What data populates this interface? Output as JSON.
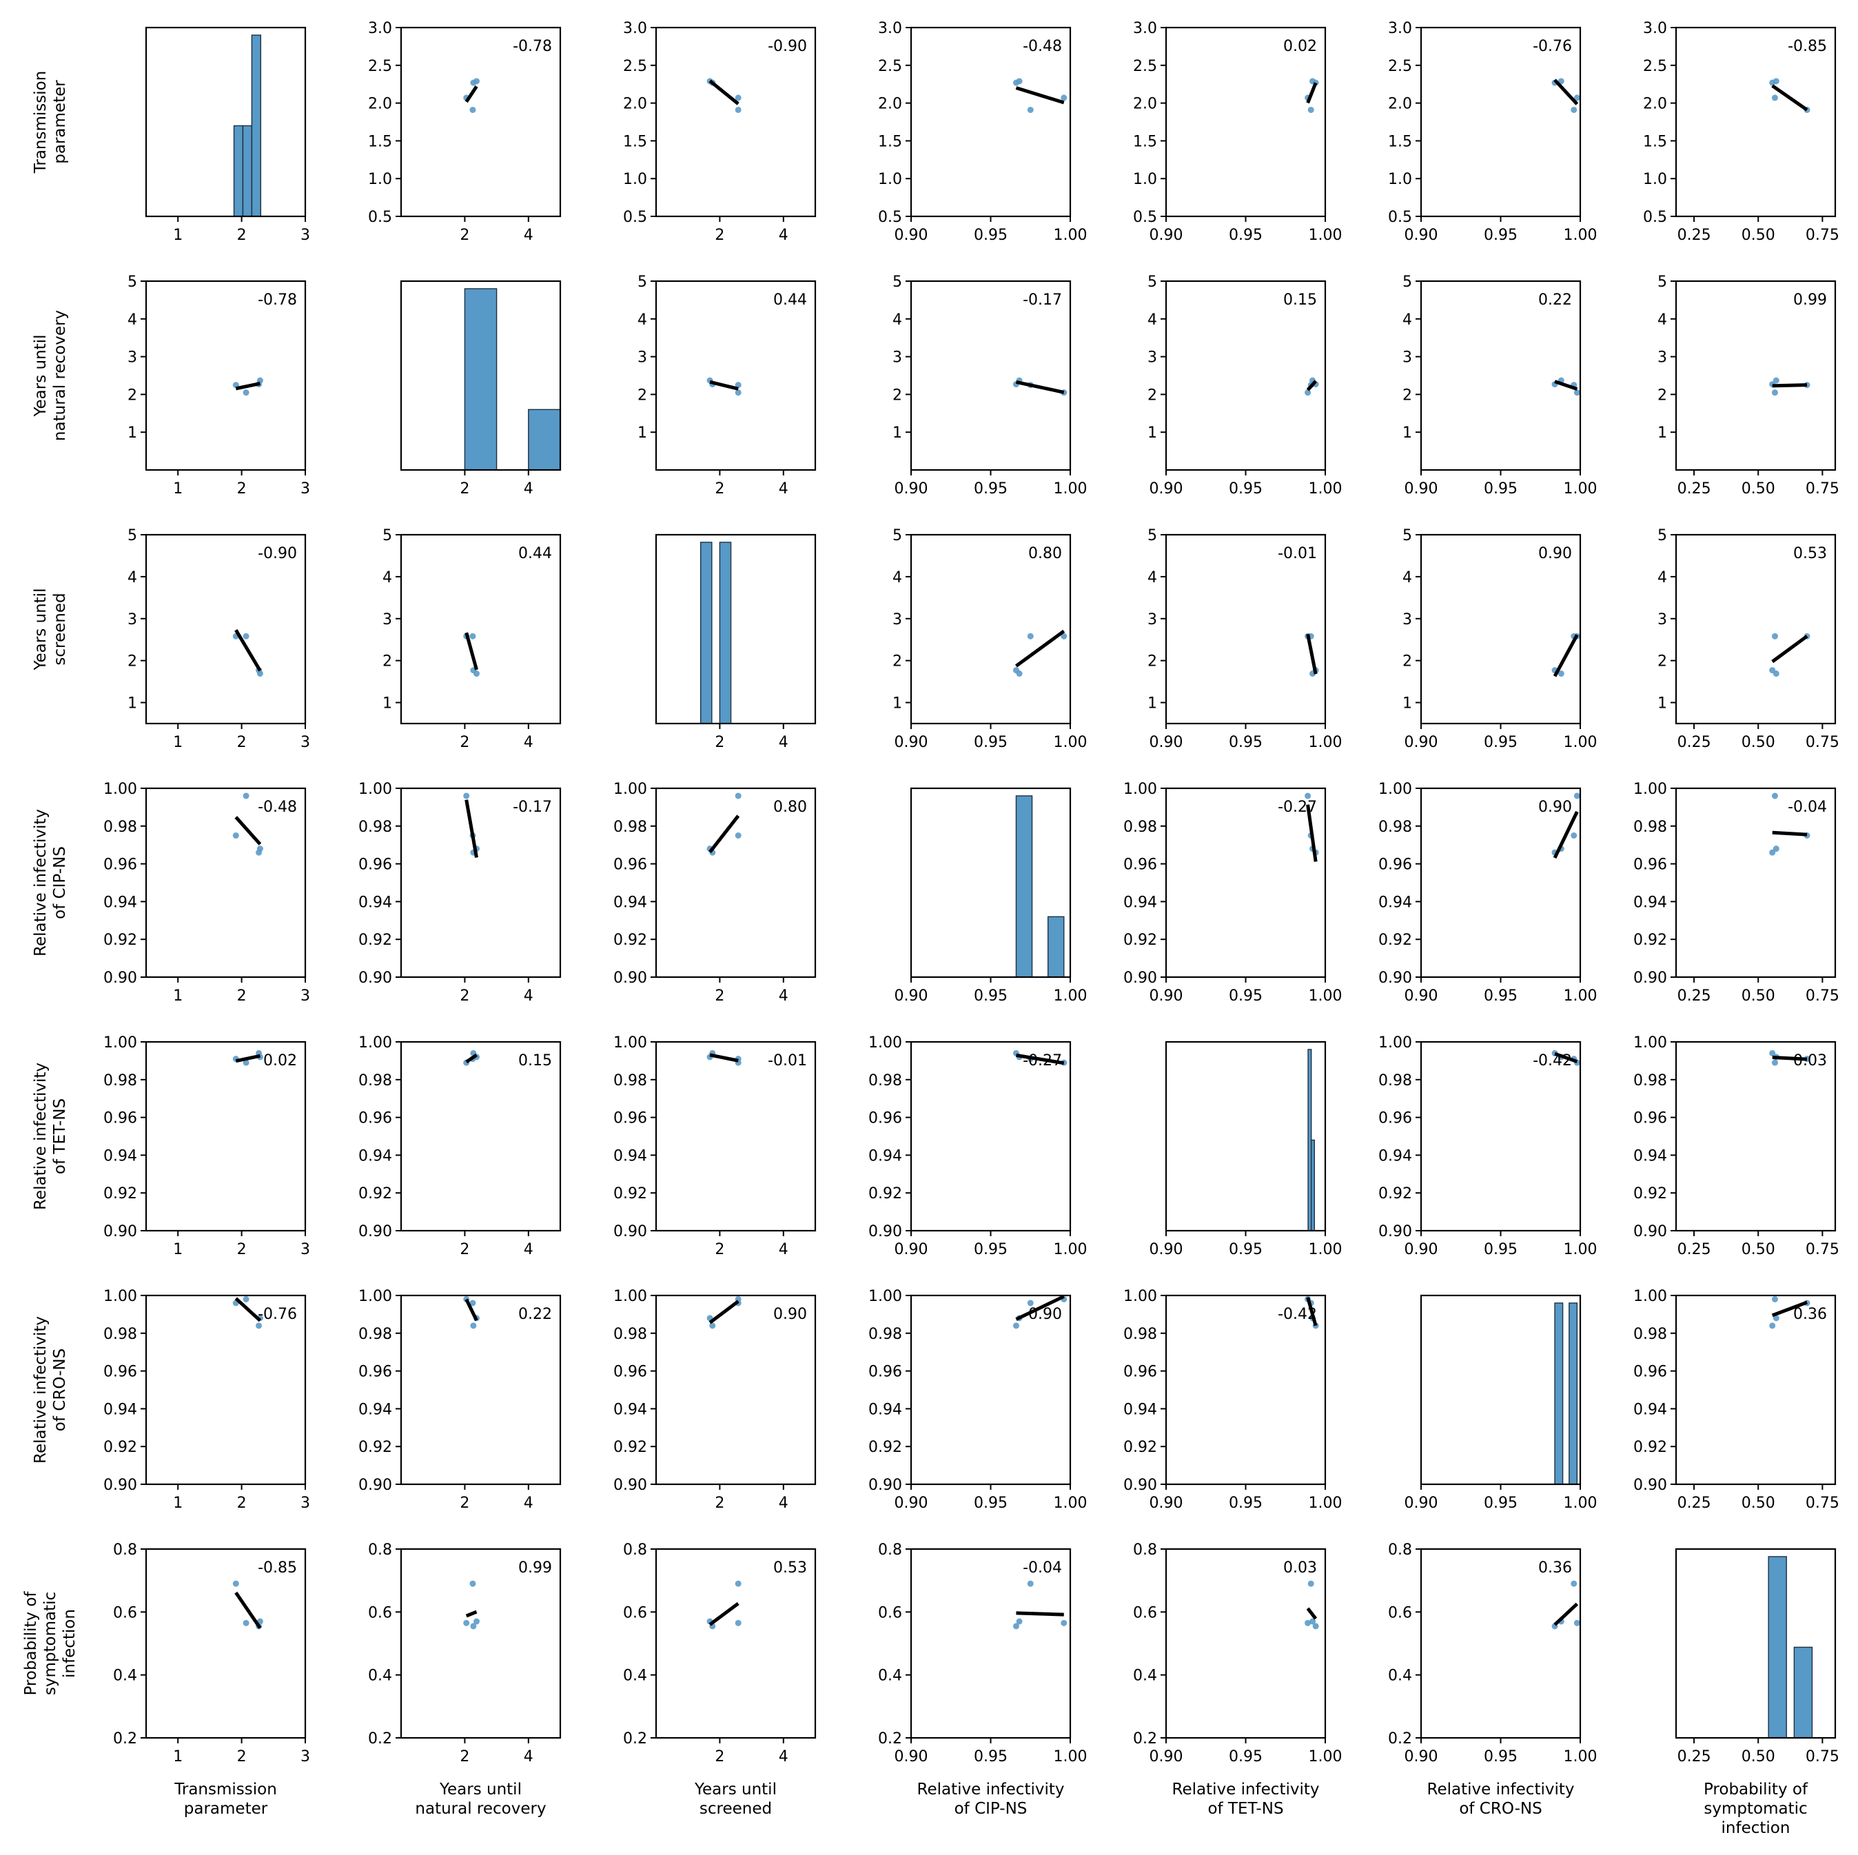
{
  "chart_data": {
    "type": "pairplot",
    "variables": [
      "Transmission parameter",
      "Years until natural recovery",
      "Years until screened",
      "Relative infectivity of CIP-NS",
      "Relative infectivity of TET-NS",
      "Relative infectivity of CRO-NS",
      "Probability of symptomatic infection"
    ],
    "axis_labels": [
      [
        "Transmission",
        "parameter"
      ],
      [
        "Years until",
        "natural recovery"
      ],
      [
        "Years until",
        "screened"
      ],
      [
        "Relative infectivity",
        "of CIP-NS"
      ],
      [
        "Relative infectivity",
        "of TET-NS"
      ],
      [
        "Relative infectivity",
        "of CRO-NS"
      ],
      [
        "Probability of",
        "symptomatic",
        "infection"
      ]
    ],
    "xlims": [
      [
        0.5,
        3.0
      ],
      [
        0.0,
        5.0
      ],
      [
        0.0,
        5.0
      ],
      [
        0.9,
        1.0
      ],
      [
        0.9,
        1.0
      ],
      [
        0.9,
        1.0
      ],
      [
        0.18,
        0.8
      ]
    ],
    "ylims": [
      [
        0.5,
        3.0
      ],
      [
        0.0,
        5.0
      ],
      [
        0.5,
        5.0
      ],
      [
        0.9,
        1.0
      ],
      [
        0.9,
        1.0
      ],
      [
        0.9,
        1.0
      ],
      [
        0.2,
        0.8
      ]
    ],
    "xticks": [
      [
        "1",
        "2",
        "3"
      ],
      [
        "2",
        "4"
      ],
      [
        "2",
        "4"
      ],
      [
        "0.90",
        "0.95",
        "1.00"
      ],
      [
        "0.90",
        "0.95",
        "1.00"
      ],
      [
        "0.90",
        "0.95",
        "1.00"
      ],
      [
        "0.25",
        "0.50",
        "0.75"
      ]
    ],
    "yticks": [
      [
        "0.5",
        "1.0",
        "1.5",
        "2.0",
        "2.5",
        "3.0"
      ],
      [
        "1",
        "2",
        "3",
        "4",
        "5"
      ],
      [
        "1",
        "2",
        "3",
        "4",
        "5"
      ],
      [
        "0.90",
        "0.92",
        "0.94",
        "0.96",
        "0.98",
        "1.00"
      ],
      [
        "0.90",
        "0.92",
        "0.94",
        "0.96",
        "0.98",
        "1.00"
      ],
      [
        "0.90",
        "0.92",
        "0.94",
        "0.96",
        "0.98",
        "1.00"
      ],
      [
        "0.2",
        "0.4",
        "0.6",
        "0.8"
      ]
    ],
    "samples": [
      {
        "transmission": 1.91,
        "recovery": 2.25,
        "screened": 2.58,
        "cip": 0.975,
        "tet": 0.991,
        "cro": 0.996,
        "symptomatic": 0.69
      },
      {
        "transmission": 2.07,
        "recovery": 2.05,
        "screened": 2.58,
        "cip": 0.996,
        "tet": 0.989,
        "cro": 0.998,
        "symptomatic": 0.565
      },
      {
        "transmission": 2.27,
        "recovery": 2.27,
        "screened": 1.77,
        "cip": 0.966,
        "tet": 0.994,
        "cro": 0.984,
        "symptomatic": 0.555
      },
      {
        "transmission": 2.29,
        "recovery": 2.37,
        "screened": 1.69,
        "cip": 0.968,
        "tet": 0.992,
        "cro": 0.988,
        "symptomatic": 0.57
      }
    ],
    "correlations": [
      [
        null,
        -0.78,
        -0.9,
        -0.48,
        0.02,
        -0.76,
        -0.85
      ],
      [
        -0.78,
        null,
        0.44,
        -0.17,
        0.15,
        0.22,
        0.99
      ],
      [
        -0.9,
        0.44,
        null,
        0.8,
        -0.01,
        0.9,
        0.53
      ],
      [
        -0.48,
        -0.17,
        0.8,
        null,
        -0.27,
        0.9,
        -0.04
      ],
      [
        0.02,
        0.15,
        -0.01,
        -0.27,
        null,
        -0.42,
        0.03
      ],
      [
        -0.76,
        0.22,
        0.9,
        0.9,
        -0.42,
        null,
        0.36
      ],
      [
        -0.85,
        0.99,
        0.53,
        -0.04,
        0.03,
        0.36,
        null
      ]
    ],
    "correlation_labels": [
      [
        null,
        "-0.78",
        "-0.90",
        "-0.48",
        "0.02",
        "-0.76",
        "-0.85"
      ],
      [
        "-0.78",
        null,
        "0.44",
        "-0.17",
        "0.15",
        "0.22",
        "0.99"
      ],
      [
        "-0.90",
        "0.44",
        null,
        "0.80",
        "-0.01",
        "0.90",
        "0.53"
      ],
      [
        "-0.48",
        "-0.17",
        "0.80",
        null,
        "-0.27",
        "0.90",
        "-0.04"
      ],
      [
        "0.02",
        "0.15",
        "-0.01",
        "-0.27",
        null,
        "-0.42",
        "0.03"
      ],
      [
        "-0.76",
        "0.22",
        "0.90",
        "0.90",
        "-0.42",
        null,
        "0.36"
      ],
      [
        "-0.85",
        "0.99",
        "0.53",
        "-0.04",
        "0.03",
        "0.36",
        null
      ]
    ],
    "histograms": [
      {
        "bins": [
          [
            1.88,
            2.02,
            2
          ],
          [
            2.02,
            2.16,
            2
          ],
          [
            2.16,
            2.3,
            4
          ]
        ]
      },
      {
        "bins": [
          [
            2.0,
            3.0,
            3
          ],
          [
            4.0,
            5.0,
            1
          ]
        ]
      },
      {
        "bins": [
          [
            1.4,
            1.75,
            2
          ],
          [
            2.0,
            2.35,
            2
          ]
        ]
      },
      {
        "bins": [
          [
            0.966,
            0.976,
            3
          ],
          [
            0.986,
            0.996,
            1
          ]
        ]
      },
      {
        "bins": [
          [
            0.9892,
            0.9912,
            2
          ],
          [
            0.9912,
            0.9932,
            1
          ]
        ]
      },
      {
        "bins": [
          [
            0.984,
            0.989,
            1
          ],
          [
            0.993,
            0.998,
            1
          ]
        ]
      },
      {
        "bins": [
          [
            0.54,
            0.61,
            2
          ],
          [
            0.64,
            0.71,
            1
          ]
        ]
      }
    ],
    "colors": {
      "points": "#5b9ac9",
      "bars": "#5799c7",
      "bar_edge": "#1f2f3f",
      "fit_line": "#000000"
    },
    "grid": false,
    "legend": "none"
  }
}
